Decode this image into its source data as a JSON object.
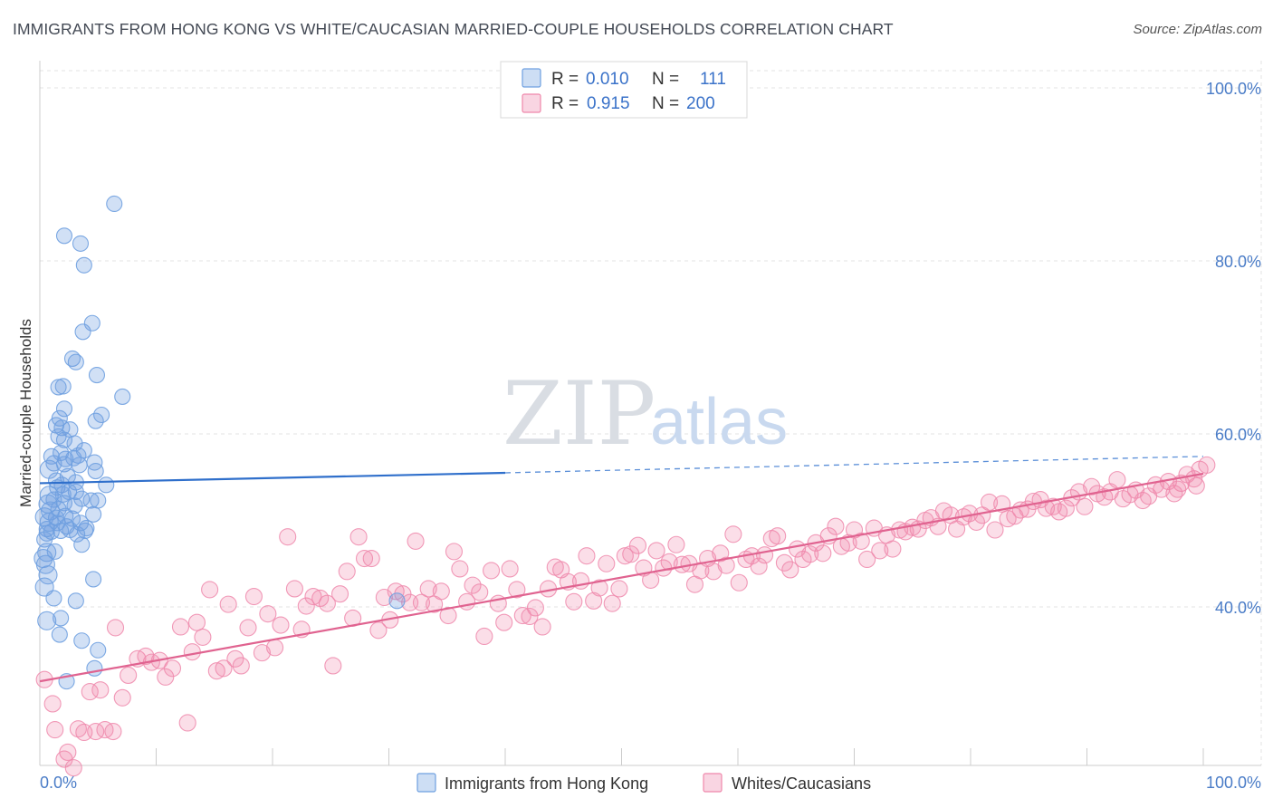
{
  "header": {
    "title": "IMMIGRANTS FROM HONG KONG VS WHITE/CAUCASIAN MARRIED-COUPLE HOUSEHOLDS CORRELATION CHART",
    "source": "Source: ZipAtlas.com"
  },
  "watermark": {
    "zip": "ZIP",
    "atlas": "atlas"
  },
  "legend": {
    "rows": [
      {
        "r_label": "R =",
        "r_value": "0.010",
        "n_label": "N =",
        "n_value": "111",
        "color": "#6fa0e0"
      },
      {
        "r_label": "R =",
        "r_value": "0.915",
        "n_label": "N =",
        "n_value": "200",
        "color": "#ef88ab"
      }
    ]
  },
  "bottom_legend": [
    {
      "label": "Immigrants from Hong Kong",
      "color": "#6fa0e0"
    },
    {
      "label": "Whites/Caucasians",
      "color": "#ef88ab"
    }
  ],
  "chart_data": {
    "type": "scatter",
    "ylabel": "Married-couple Households",
    "xlim": [
      0,
      100
    ],
    "ylim": [
      20,
      103
    ],
    "x_tick_labels": [
      {
        "value": 0,
        "label": "0.0%"
      },
      {
        "value": 100,
        "label": "100.0%"
      }
    ],
    "y_tick_labels": [
      {
        "value": 40,
        "label": "40.0%"
      },
      {
        "value": 60,
        "label": "60.0%"
      },
      {
        "value": 80,
        "label": "80.0%"
      },
      {
        "value": 100,
        "label": "100.0%"
      }
    ],
    "grid": true,
    "series": [
      {
        "name": "Immigrants from Hong Kong",
        "color": "#6fa0e0",
        "trend": {
          "x0": 0,
          "y0": 54.3,
          "x1": 40,
          "y1": 55.5,
          "dashed_to_x": 100,
          "dashed_to_y": 57.4
        },
        "points": [
          [
            6.4,
            86.6
          ],
          [
            2.1,
            82.9
          ],
          [
            3.5,
            82.0
          ],
          [
            3.8,
            79.5
          ],
          [
            4.5,
            72.8
          ],
          [
            3.7,
            71.8
          ],
          [
            2.8,
            68.7
          ],
          [
            3.1,
            68.3
          ],
          [
            4.9,
            66.8
          ],
          [
            7.1,
            64.3
          ],
          [
            2.0,
            65.5
          ],
          [
            1.6,
            65.4
          ],
          [
            2.1,
            62.9
          ],
          [
            5.3,
            62.2
          ],
          [
            1.7,
            61.8
          ],
          [
            1.4,
            61.0
          ],
          [
            4.8,
            61.5
          ],
          [
            1.9,
            60.7
          ],
          [
            2.6,
            60.5
          ],
          [
            1.6,
            59.7
          ],
          [
            2.1,
            59.3
          ],
          [
            3.0,
            58.9
          ],
          [
            3.8,
            58.1
          ],
          [
            1.8,
            57.8
          ],
          [
            1.0,
            57.4
          ],
          [
            2.9,
            57.2
          ],
          [
            3.3,
            57.5
          ],
          [
            2.2,
            57.1
          ],
          [
            4.7,
            56.7
          ],
          [
            1.2,
            56.6
          ],
          [
            3.4,
            56.4
          ],
          [
            0.8,
            55.9
          ],
          [
            2.1,
            56.5
          ],
          [
            4.8,
            55.7
          ],
          [
            2.4,
            55.1
          ],
          [
            3.1,
            54.4
          ],
          [
            1.4,
            54.6
          ],
          [
            1.9,
            54.1
          ],
          [
            5.7,
            54.1
          ],
          [
            1.5,
            53.8
          ],
          [
            2.5,
            53.3
          ],
          [
            3.1,
            53.3
          ],
          [
            2.0,
            53.0
          ],
          [
            0.8,
            52.9
          ],
          [
            3.6,
            52.5
          ],
          [
            1.2,
            52.4
          ],
          [
            4.4,
            52.3
          ],
          [
            5.0,
            52.3
          ],
          [
            2.1,
            52.0
          ],
          [
            0.7,
            51.9
          ],
          [
            3.0,
            51.7
          ],
          [
            1.6,
            51.3
          ],
          [
            0.9,
            51.1
          ],
          [
            4.6,
            50.7
          ],
          [
            0.4,
            50.4
          ],
          [
            2.2,
            50.5
          ],
          [
            1.4,
            50.3
          ],
          [
            2.8,
            50.2
          ],
          [
            0.8,
            49.8
          ],
          [
            1.5,
            49.7
          ],
          [
            3.5,
            49.7
          ],
          [
            2.3,
            49.3
          ],
          [
            4.0,
            49.1
          ],
          [
            0.6,
            49.0
          ],
          [
            2.6,
            48.9
          ],
          [
            1.8,
            48.8
          ],
          [
            3.9,
            48.8
          ],
          [
            1.0,
            48.7
          ],
          [
            0.6,
            48.5
          ],
          [
            3.2,
            48.4
          ],
          [
            0.4,
            47.8
          ],
          [
            3.6,
            47.2
          ],
          [
            0.6,
            46.3
          ],
          [
            1.3,
            46.4
          ],
          [
            0.3,
            45.6
          ],
          [
            0.5,
            44.9
          ],
          [
            0.7,
            43.7
          ],
          [
            4.6,
            43.2
          ],
          [
            0.4,
            42.3
          ],
          [
            1.2,
            41.0
          ],
          [
            3.1,
            40.7
          ],
          [
            30.7,
            40.7
          ],
          [
            1.8,
            38.7
          ],
          [
            0.6,
            38.4
          ],
          [
            1.7,
            36.8
          ],
          [
            3.6,
            36.1
          ],
          [
            5.0,
            35.0
          ],
          [
            4.7,
            32.9
          ],
          [
            2.3,
            31.4
          ]
        ]
      },
      {
        "name": "Whites/Caucasians",
        "color": "#ef88ab",
        "trend": {
          "x0": 0,
          "y0": 31.4,
          "x1": 100,
          "y1": 55.4
        },
        "points": [
          [
            0.4,
            31.6
          ],
          [
            1.1,
            28.8
          ],
          [
            1.3,
            25.8
          ],
          [
            2.1,
            22.4
          ],
          [
            2.4,
            23.2
          ],
          [
            2.9,
            21.4
          ],
          [
            3.3,
            25.9
          ],
          [
            3.8,
            25.5
          ],
          [
            4.3,
            30.2
          ],
          [
            4.8,
            25.6
          ],
          [
            5.2,
            30.4
          ],
          [
            5.6,
            25.8
          ],
          [
            6.3,
            25.6
          ],
          [
            6.5,
            37.6
          ],
          [
            7.1,
            29.5
          ],
          [
            7.6,
            32.1
          ],
          [
            8.4,
            34.0
          ],
          [
            9.1,
            34.3
          ],
          [
            9.6,
            33.6
          ],
          [
            10.3,
            33.8
          ],
          [
            10.8,
            31.9
          ],
          [
            11.4,
            32.9
          ],
          [
            12.1,
            37.7
          ],
          [
            12.7,
            26.6
          ],
          [
            13.1,
            34.8
          ],
          [
            13.5,
            38.2
          ],
          [
            14.0,
            36.5
          ],
          [
            14.6,
            42.0
          ],
          [
            15.2,
            32.6
          ],
          [
            15.8,
            32.9
          ],
          [
            16.2,
            40.3
          ],
          [
            16.8,
            34.0
          ],
          [
            17.3,
            33.2
          ],
          [
            17.9,
            37.6
          ],
          [
            18.4,
            41.2
          ],
          [
            19.1,
            34.7
          ],
          [
            19.6,
            39.2
          ],
          [
            20.2,
            35.3
          ],
          [
            20.7,
            37.9
          ],
          [
            21.3,
            48.1
          ],
          [
            21.9,
            42.1
          ],
          [
            22.5,
            37.4
          ],
          [
            22.9,
            40.1
          ],
          [
            23.5,
            41.2
          ],
          [
            24.1,
            41.0
          ],
          [
            24.7,
            40.4
          ],
          [
            25.2,
            33.2
          ],
          [
            25.8,
            41.5
          ],
          [
            26.4,
            44.1
          ],
          [
            26.9,
            38.7
          ],
          [
            27.4,
            48.1
          ],
          [
            27.9,
            45.6
          ],
          [
            28.5,
            45.6
          ],
          [
            29.1,
            37.3
          ],
          [
            29.6,
            41.1
          ],
          [
            30.1,
            38.5
          ],
          [
            30.6,
            41.8
          ],
          [
            31.2,
            41.5
          ],
          [
            31.8,
            40.5
          ],
          [
            32.3,
            47.6
          ],
          [
            32.8,
            40.5
          ],
          [
            33.4,
            42.1
          ],
          [
            33.9,
            40.3
          ],
          [
            34.5,
            41.8
          ],
          [
            35.1,
            39.0
          ],
          [
            35.6,
            46.4
          ],
          [
            36.1,
            44.4
          ],
          [
            36.7,
            40.6
          ],
          [
            37.2,
            42.5
          ],
          [
            37.8,
            41.7
          ],
          [
            38.2,
            36.6
          ],
          [
            38.8,
            44.2
          ],
          [
            39.4,
            40.4
          ],
          [
            39.9,
            38.2
          ],
          [
            40.4,
            44.4
          ],
          [
            41.0,
            42.0
          ],
          [
            41.5,
            39.0
          ],
          [
            42.1,
            38.9
          ],
          [
            42.6,
            39.9
          ],
          [
            43.2,
            37.7
          ],
          [
            43.7,
            42.1
          ],
          [
            44.3,
            44.6
          ],
          [
            44.8,
            44.3
          ],
          [
            45.4,
            42.9
          ],
          [
            45.9,
            40.6
          ],
          [
            46.5,
            43.0
          ],
          [
            47.0,
            45.9
          ],
          [
            47.6,
            40.7
          ],
          [
            48.1,
            42.2
          ],
          [
            48.7,
            45.0
          ],
          [
            49.2,
            40.4
          ],
          [
            49.8,
            42.1
          ],
          [
            50.3,
            45.9
          ],
          [
            50.8,
            46.1
          ],
          [
            51.4,
            47.1
          ],
          [
            51.9,
            44.5
          ],
          [
            52.5,
            43.1
          ],
          [
            53.0,
            46.5
          ],
          [
            53.6,
            44.5
          ],
          [
            54.1,
            45.2
          ],
          [
            54.7,
            47.2
          ],
          [
            55.2,
            44.9
          ],
          [
            55.8,
            45.0
          ],
          [
            56.3,
            42.6
          ],
          [
            56.8,
            44.2
          ],
          [
            57.4,
            45.6
          ],
          [
            57.9,
            44.1
          ],
          [
            58.5,
            46.2
          ],
          [
            59.0,
            44.8
          ],
          [
            59.6,
            48.4
          ],
          [
            60.1,
            42.8
          ],
          [
            60.7,
            45.5
          ],
          [
            61.2,
            45.9
          ],
          [
            61.8,
            44.7
          ],
          [
            62.3,
            46.0
          ],
          [
            62.9,
            47.9
          ],
          [
            63.4,
            48.2
          ],
          [
            64.0,
            45.1
          ],
          [
            64.5,
            44.3
          ],
          [
            65.1,
            46.7
          ],
          [
            65.6,
            45.5
          ],
          [
            66.2,
            46.1
          ],
          [
            66.7,
            47.4
          ],
          [
            67.3,
            46.2
          ],
          [
            67.8,
            48.2
          ],
          [
            68.4,
            49.3
          ],
          [
            68.9,
            47.0
          ],
          [
            69.5,
            47.4
          ],
          [
            70.0,
            48.9
          ],
          [
            70.6,
            47.6
          ],
          [
            71.1,
            45.5
          ],
          [
            71.7,
            49.1
          ],
          [
            72.2,
            46.5
          ],
          [
            72.8,
            48.3
          ],
          [
            73.3,
            46.7
          ],
          [
            73.9,
            48.9
          ],
          [
            74.4,
            48.7
          ],
          [
            75.0,
            49.2
          ],
          [
            75.5,
            49.0
          ],
          [
            76.1,
            50.0
          ],
          [
            76.6,
            50.3
          ],
          [
            77.2,
            49.3
          ],
          [
            77.7,
            51.1
          ],
          [
            78.3,
            50.6
          ],
          [
            78.8,
            49.0
          ],
          [
            79.4,
            50.4
          ],
          [
            79.9,
            50.8
          ],
          [
            80.5,
            49.8
          ],
          [
            81.0,
            50.6
          ],
          [
            81.6,
            52.1
          ],
          [
            82.1,
            48.9
          ],
          [
            82.7,
            51.9
          ],
          [
            83.2,
            50.2
          ],
          [
            83.8,
            50.5
          ],
          [
            84.3,
            51.2
          ],
          [
            84.9,
            51.3
          ],
          [
            85.4,
            52.2
          ],
          [
            86.0,
            52.4
          ],
          [
            86.5,
            51.4
          ],
          [
            87.1,
            51.6
          ],
          [
            87.6,
            51.0
          ],
          [
            88.2,
            51.4
          ],
          [
            88.7,
            52.6
          ],
          [
            89.3,
            53.3
          ],
          [
            89.8,
            51.6
          ],
          [
            90.4,
            53.9
          ],
          [
            90.9,
            53.1
          ],
          [
            91.5,
            52.7
          ],
          [
            92.0,
            53.3
          ],
          [
            92.6,
            54.7
          ],
          [
            93.1,
            52.5
          ],
          [
            93.7,
            53.0
          ],
          [
            94.2,
            53.5
          ],
          [
            94.8,
            52.3
          ],
          [
            95.3,
            52.8
          ],
          [
            95.9,
            54.1
          ],
          [
            96.4,
            53.6
          ],
          [
            97.0,
            54.5
          ],
          [
            97.5,
            53.1
          ],
          [
            98.1,
            54.3
          ],
          [
            98.6,
            55.3
          ],
          [
            99.2,
            54.8
          ],
          [
            99.7,
            55.9
          ],
          [
            100.3,
            56.4
          ],
          [
            97.8,
            53.6
          ],
          [
            99.4,
            54.0
          ]
        ]
      }
    ]
  }
}
